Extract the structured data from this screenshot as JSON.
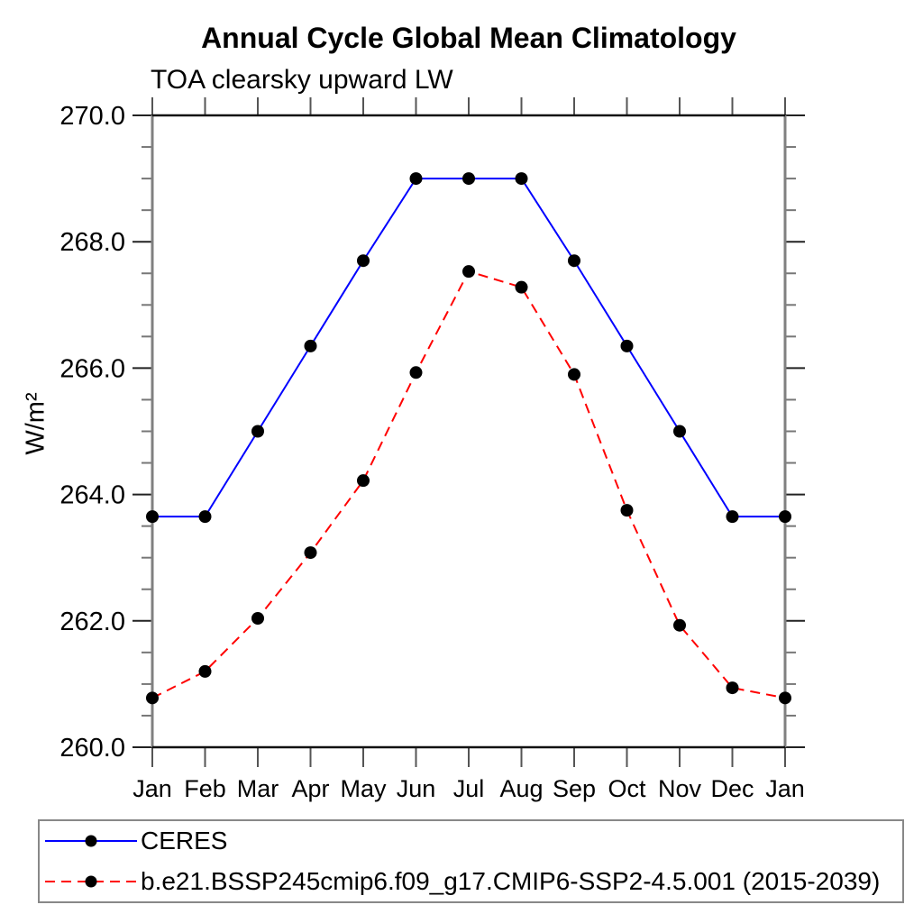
{
  "chart_data": {
    "type": "line",
    "title": "Annual Cycle Global Mean Climatology",
    "subtitle": "TOA clearsky upward LW",
    "ylabel": "W/m²",
    "xlabel": "",
    "categories": [
      "Jan",
      "Feb",
      "Mar",
      "Apr",
      "May",
      "Jun",
      "Jul",
      "Aug",
      "Sep",
      "Oct",
      "Nov",
      "Dec",
      "Jan"
    ],
    "ylim": [
      260.0,
      270.0
    ],
    "y_major_ticks": [
      260,
      262,
      264,
      266,
      268,
      270
    ],
    "y_tick_labels": [
      "260.0",
      "262.0",
      "264.0",
      "266.0",
      "268.0",
      "270.0"
    ],
    "y_minor_step": 0.5,
    "grid": false,
    "legend_position": "bottom",
    "marker_color": "#000000",
    "series": [
      {
        "name": "CERES",
        "color": "#0000ff",
        "style": "solid",
        "marker": "filled-circle",
        "values": [
          263.65,
          263.65,
          265.0,
          266.35,
          267.7,
          269.0,
          269.0,
          269.0,
          267.7,
          266.35,
          265.0,
          263.65,
          263.65
        ]
      },
      {
        "name": "b.e21.BSSP245cmip6.f09_g17.CMIP6-SSP2-4.5.001 (2015-2039)",
        "color": "#ff0000",
        "style": "dashed",
        "marker": "filled-circle",
        "values": [
          260.78,
          261.2,
          262.04,
          263.08,
          264.22,
          265.93,
          267.53,
          267.28,
          265.9,
          263.75,
          261.93,
          260.94,
          260.78
        ]
      }
    ]
  }
}
